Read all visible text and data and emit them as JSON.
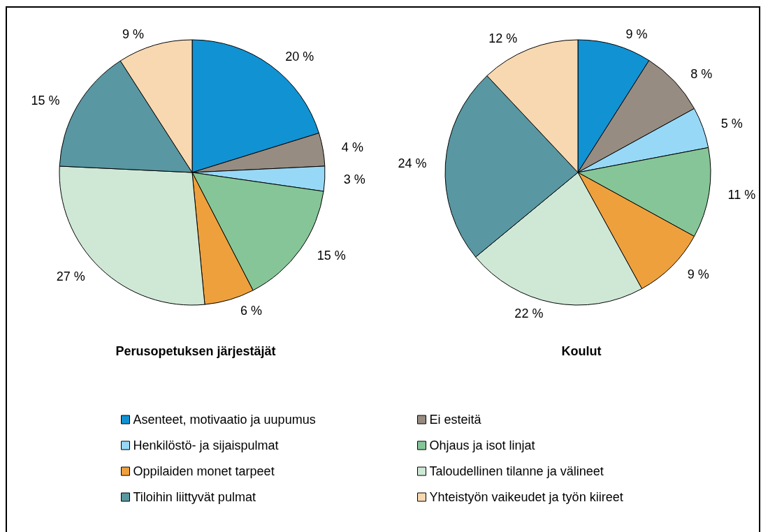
{
  "chart_data": {
    "type": "pie",
    "categories": [
      "Asenteet, motivaatio ja uupumus",
      "Ei esteitä",
      "Henkilöstö- ja sijaispulmat",
      "Ohjaus ja isot linjat",
      "Oppilaiden monet tarpeet",
      "Taloudellinen tilanne ja välineet",
      "Tiloihin liittyvät pulmat",
      "Yhteistyön vaikeudet ja työn kiireet"
    ],
    "colors": [
      "#1192d3",
      "#978c81",
      "#97d8f7",
      "#86c597",
      "#eea03d",
      "#cfe8d6",
      "#5997a2",
      "#f7d8b1"
    ],
    "series": [
      {
        "name": "Perusopetuksen järjestäjät",
        "values": [
          20,
          4,
          3,
          15,
          6,
          27,
          15,
          9
        ],
        "value_labels": [
          "20 %",
          "4 %",
          "3 %",
          "15 %",
          "6 %",
          "27 %",
          "15 %",
          "9 %"
        ]
      },
      {
        "name": "Koulut",
        "values": [
          9,
          8,
          5,
          11,
          9,
          22,
          24,
          12
        ],
        "value_labels": [
          "9 %",
          "8 %",
          "5 %",
          "11 %",
          "9 %",
          "22 %",
          "24 %",
          "12 %"
        ]
      }
    ],
    "legend": "bottom"
  }
}
